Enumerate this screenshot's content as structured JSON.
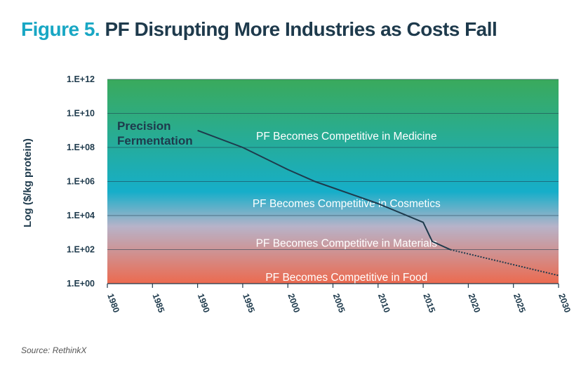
{
  "title": {
    "prefix": "Figure 5.",
    "main": "PF Disrupting More Industries as Costs Fall"
  },
  "source": "Source: RethinkX",
  "colors": {
    "title_prefix": "#19a7c4",
    "title_main": "#1e3a4c",
    "line": "#1e3a4c",
    "gradient_top": "#3aaa5c",
    "gradient_mid": "#16aec9",
    "gradient_low": "#b7b3c9",
    "gradient_bottom": "#ec6a4f"
  },
  "chart_data": {
    "type": "line",
    "ylabel": "Log ($/kg protein)",
    "xlabel": "",
    "yscale": "log",
    "xlim": [
      1980,
      2030
    ],
    "ylim": [
      1,
      1000000000000
    ],
    "x_ticks": [
      "1980",
      "1985",
      "1990",
      "1995",
      "2000",
      "2005",
      "2010",
      "2015",
      "2020",
      "2025",
      "2030"
    ],
    "y_ticks": [
      "1.E+12",
      "1.E+10",
      "1.E+08",
      "1.E+06",
      "1.E+04",
      "1.E+02",
      "1.E+00"
    ],
    "grid": true,
    "series": [
      {
        "name": "Precision Fermentation",
        "style": "solid",
        "x": [
          1990,
          1995,
          2000,
          2003,
          2010,
          2015,
          2016,
          2018
        ],
        "y": [
          1000000000,
          100000000,
          5000000,
          1000000,
          50000,
          4000,
          300,
          100
        ]
      },
      {
        "name": "",
        "style": "dotted",
        "x": [
          2018,
          2030
        ],
        "y": [
          100,
          3
        ]
      }
    ],
    "bands": [
      {
        "label": "PF Becomes Competitive in Medicine",
        "label_y": 1000000000
      },
      {
        "label": "PF Becomes Competitive in Cosmetics",
        "label_y": 10000
      },
      {
        "label": "PF Becomes Competitive in Materials",
        "label_y": 1000
      },
      {
        "label": "PF Becomes Competitive in Food",
        "label_y": 10
      }
    ],
    "series_label_lines": [
      "Precision",
      "Fermentation"
    ]
  }
}
